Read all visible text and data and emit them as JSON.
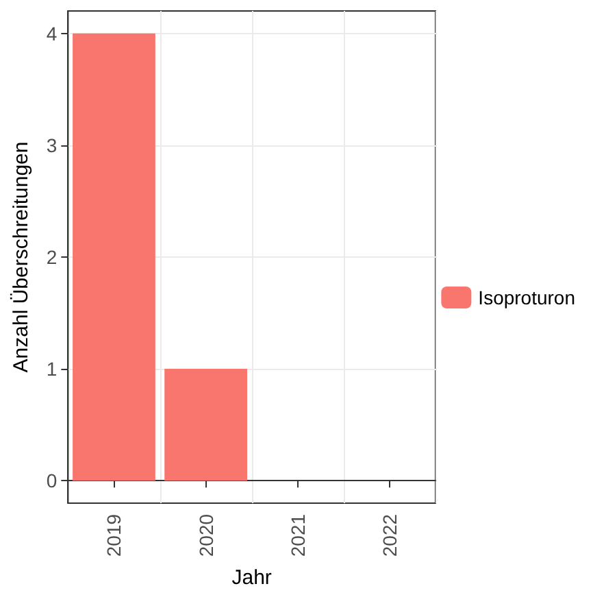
{
  "chart_data": {
    "type": "bar",
    "xlabel": "Jahr",
    "ylabel": "Anzahl Überschreitungen",
    "categories": [
      "2019",
      "2020",
      "2021",
      "2022"
    ],
    "series": [
      {
        "name": "Isoproturon",
        "color": "#f8766d",
        "values": [
          4,
          1,
          0,
          0
        ]
      }
    ],
    "ylim": [
      -0.2,
      4.2
    ],
    "yticks": [
      0,
      1,
      2,
      3,
      4
    ],
    "grid": true,
    "legend": "right"
  }
}
